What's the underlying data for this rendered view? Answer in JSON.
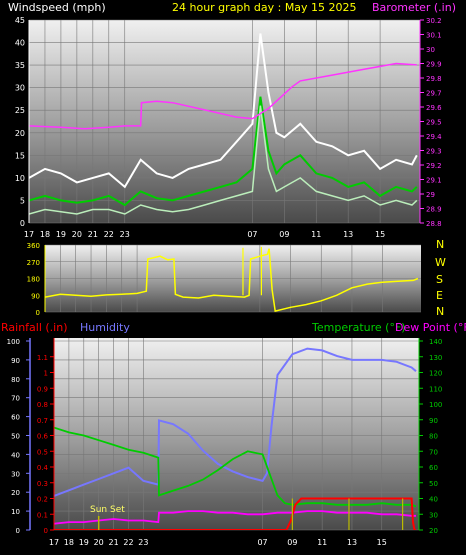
{
  "header": {
    "wind_label": "Windspeed (mph)",
    "title": "24 hour graph day : May 15 2025",
    "baro_label": "Barometer (.in)"
  },
  "panel3": {
    "rain_label": "Rainfall (.in)",
    "humidity_label": "Humidity",
    "temp_label": "Temperature (°F)",
    "dew_label": "Dew Point (°F)",
    "sunset_label": "Sun Set"
  },
  "compass": [
    "N",
    "W",
    "S",
    "E",
    "N"
  ],
  "colors": {
    "background": "#000000",
    "wind_label": "#ffffff",
    "title": "#ffff00",
    "barometer": "#ff33ff",
    "gust": "#ffffff",
    "wind_avg": "#00cc00",
    "wind_speed": "#bbeebb",
    "direction": "#ffff00",
    "rainfall": "#ff0000",
    "humidity": "#7777ff",
    "temperature": "#00cc00",
    "dew_point": "#ff00ff",
    "sunset": "#bbbb00"
  },
  "chart_data": [
    {
      "type": "line",
      "name": "wind_barometer",
      "x_ticks": [
        "18",
        "20",
        "22",
        "07",
        "09",
        "11",
        "13",
        "15",
        "17",
        "19",
        "21",
        "23"
      ],
      "y_left": {
        "label": "Windspeed (mph)",
        "range": [
          0,
          45
        ],
        "ticks": [
          0,
          5,
          10,
          15,
          20,
          25,
          30,
          35,
          40,
          45
        ]
      },
      "y_right": {
        "label": "Barometer (.in)",
        "range": [
          28.8,
          30.2
        ],
        "ticks": [
          28.8,
          28.9,
          29.0,
          29.1,
          29.2,
          29.3,
          29.4,
          29.5,
          29.6,
          29.7,
          29.8,
          29.9,
          30.0,
          30.1,
          30.2
        ],
        "tick_labels": [
          "28.8",
          "28.9",
          "29",
          "29.1",
          "29.2",
          "29.3",
          "29.4",
          "29.5",
          "29.6",
          "29.7",
          "29.8",
          "29.9",
          "30",
          "30.1",
          "30.2"
        ]
      },
      "x_range": [
        17,
        41.5
      ],
      "barometer": {
        "x": [
          17,
          19,
          20.5,
          22,
          23,
          24,
          24.05,
          25,
          26,
          28,
          30,
          31,
          32,
          32.4,
          33,
          33.5,
          34,
          36,
          38,
          40,
          41.3
        ],
        "y": [
          29.47,
          29.46,
          29.45,
          29.46,
          29.47,
          29.47,
          29.63,
          29.64,
          29.63,
          29.58,
          29.53,
          29.52,
          29.59,
          29.63,
          29.69,
          29.74,
          29.78,
          29.82,
          29.86,
          29.9,
          29.89
        ]
      },
      "gust": {
        "x": [
          17,
          18,
          19,
          20,
          21,
          22,
          23,
          24,
          25,
          26,
          27,
          28,
          29,
          30,
          31,
          31.5,
          32,
          32.5,
          33,
          34,
          35,
          36,
          37,
          38,
          39,
          40,
          41,
          41.3
        ],
        "y": [
          10,
          12,
          11,
          9,
          10,
          11,
          8,
          14,
          11,
          10,
          12,
          13,
          14,
          18,
          22,
          42,
          29,
          20,
          19,
          22,
          18,
          17,
          15,
          16,
          12,
          14,
          13,
          15
        ]
      },
      "average": {
        "x": [
          17,
          18,
          19,
          20,
          21,
          22,
          23,
          24,
          25,
          26,
          27,
          28,
          29,
          30,
          31,
          31.5,
          32,
          32.5,
          33,
          34,
          35,
          36,
          37,
          38,
          39,
          40,
          41,
          41.3
        ],
        "y": [
          5,
          6,
          5,
          4.5,
          5,
          6,
          4,
          7,
          5.5,
          5,
          6,
          7,
          8,
          9,
          12,
          28,
          16,
          11,
          13,
          15,
          11,
          10,
          8,
          9,
          6,
          8,
          7,
          8
        ]
      },
      "speed": {
        "x": [
          17,
          18,
          19,
          20,
          21,
          22,
          23,
          24,
          25,
          26,
          27,
          28,
          29,
          30,
          31,
          31.5,
          32,
          32.5,
          33,
          34,
          35,
          36,
          37,
          38,
          39,
          40,
          41,
          41.3
        ],
        "y": [
          2,
          3,
          2.5,
          2,
          3,
          3,
          2,
          4,
          3,
          2.5,
          3,
          4,
          5,
          6,
          7,
          26,
          12,
          7,
          8,
          10,
          7,
          6,
          5,
          6,
          4,
          5,
          4,
          5
        ]
      }
    },
    {
      "type": "line",
      "name": "wind_direction",
      "y_left": {
        "range": [
          0,
          360
        ],
        "ticks": [
          0,
          90,
          180,
          270,
          360
        ]
      },
      "x_range": [
        17,
        41.5
      ],
      "direction": {
        "x": [
          17,
          18,
          19,
          20,
          21,
          22,
          23,
          23.6,
          23.7,
          24,
          24.5,
          25,
          25.4,
          25.5,
          26,
          27,
          28,
          29,
          30,
          30.3,
          30.4,
          31,
          31.5,
          31.6,
          31.8,
          32,
          33,
          34,
          35,
          36,
          37,
          38,
          39,
          40,
          41,
          41.3
        ],
        "y": [
          80,
          95,
          90,
          85,
          92,
          95,
          100,
          112,
          285,
          290,
          300,
          280,
          285,
          95,
          80,
          75,
          90,
          85,
          80,
          90,
          285,
          300,
          310,
          340,
          120,
          5,
          25,
          40,
          60,
          90,
          130,
          150,
          160,
          165,
          170,
          180
        ]
      },
      "spikes": [
        {
          "x": 29.9,
          "y": 345
        },
        {
          "x": 31.1,
          "y": 350
        }
      ]
    },
    {
      "type": "line",
      "name": "rain_humidity_temp_dew",
      "x_ticks": [
        "18",
        "20",
        "22",
        "07",
        "09",
        "11",
        "13",
        "15",
        "17",
        "19",
        "21",
        "23"
      ],
      "y_left_outer": {
        "label": "Humidity",
        "range": [
          0,
          100
        ],
        "ticks": [
          0,
          10,
          20,
          30,
          40,
          50,
          60,
          70,
          80,
          90,
          100
        ]
      },
      "y_left_inner": {
        "label": "Rainfall (.in)",
        "range": [
          0,
          1.2
        ],
        "ticks": [
          0,
          0.1,
          0.2,
          0.3,
          0.4,
          0.5,
          0.6,
          0.7,
          0.8,
          0.9,
          1.0,
          1.1
        ],
        "tick_labels": [
          "0",
          "0.1",
          "0.2",
          "0.3",
          "0.4",
          "0.5",
          "0.6",
          "0.7",
          "0.8",
          "0.9",
          "1",
          "1.1"
        ]
      },
      "y_right": {
        "label": "Temperature (°F) / Dew Point (°F)",
        "range": [
          20,
          140
        ],
        "ticks": [
          20,
          30,
          40,
          50,
          60,
          70,
          80,
          90,
          100,
          110,
          120,
          130,
          140
        ]
      },
      "x_range": [
        17,
        41.5
      ],
      "humidity": {
        "x": [
          17,
          18,
          19,
          20,
          21,
          22,
          23,
          24,
          24.05,
          25,
          26,
          27,
          28,
          29,
          30,
          31,
          31.3,
          31.6,
          32,
          33,
          34,
          35,
          36,
          37,
          38,
          39,
          40,
          41,
          41.3
        ],
        "y": [
          18,
          21,
          24,
          27,
          30,
          33,
          26,
          24,
          58,
          56,
          51,
          42,
          35,
          31,
          28,
          26,
          30,
          55,
          82,
          93,
          96,
          95,
          92,
          90,
          90,
          90,
          89,
          86,
          84
        ]
      },
      "temperature": {
        "x": [
          17,
          18,
          19,
          20,
          21,
          22,
          23,
          24,
          24.05,
          25,
          26,
          27,
          28,
          29,
          30,
          31,
          31.5,
          32,
          32.5,
          33,
          34,
          35,
          36,
          37,
          38,
          39,
          40,
          41,
          41.3
        ],
        "y": [
          85,
          82,
          80,
          77,
          74,
          71,
          69,
          66,
          42,
          45,
          48,
          52,
          58,
          65,
          70,
          68,
          55,
          42,
          37,
          36,
          37,
          37,
          36,
          36,
          36,
          37,
          36,
          36,
          35
        ]
      },
      "dew_point": {
        "x": [
          17,
          18,
          19,
          20,
          21,
          22,
          23,
          24,
          24.05,
          25,
          26,
          27,
          28,
          29,
          30,
          31,
          32,
          33,
          34,
          35,
          36,
          37,
          38,
          39,
          40,
          41,
          41.3
        ],
        "y": [
          24,
          25,
          25,
          26,
          27,
          26,
          26,
          25,
          31,
          31,
          32,
          32,
          31,
          31,
          30,
          30,
          31,
          31,
          32,
          32,
          31,
          31,
          31,
          30,
          30,
          29,
          29
        ]
      },
      "rainfall": {
        "x": [
          17,
          32.6,
          32.9,
          33.2,
          33.6,
          34,
          41,
          41.1,
          41.2,
          41.3
        ],
        "y": [
          0,
          0,
          0.06,
          0.16,
          0.2,
          0.2,
          0.2,
          0.05,
          0,
          0
        ]
      },
      "sunset_x": 20.0,
      "rain_bars": [
        33.0,
        36.8,
        40.4
      ]
    }
  ]
}
